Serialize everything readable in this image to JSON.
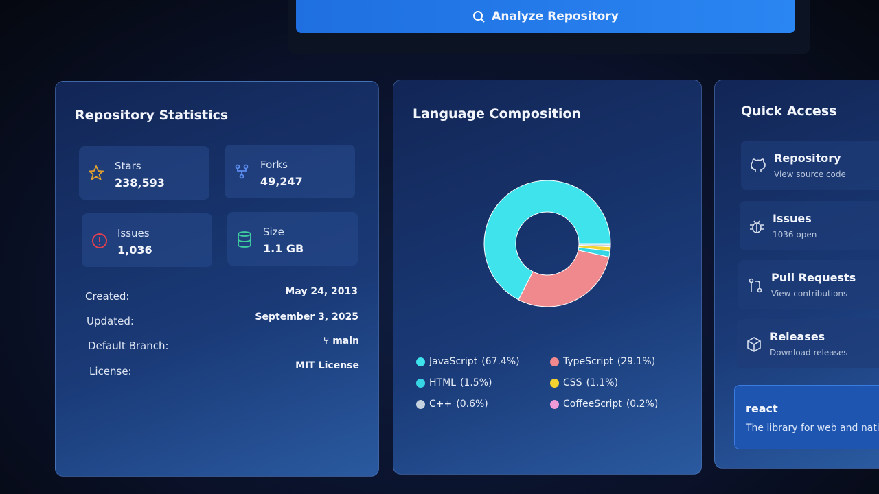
{
  "header": {
    "button": "Analyze Repository"
  },
  "stats": {
    "title": "Repository Statistics",
    "cards": [
      {
        "label": "Stars",
        "value": "238,593"
      },
      {
        "label": "Forks",
        "value": "49,247"
      },
      {
        "label": "Issues",
        "value": "1,036"
      },
      {
        "label": "Size",
        "value": "1.1 GB"
      }
    ],
    "details": [
      {
        "label": "Created:",
        "value": "May 24, 2013"
      },
      {
        "label": "Updated:",
        "value": "September 3, 2025"
      },
      {
        "label": "Default Branch:",
        "value": "main"
      },
      {
        "label": "License:",
        "value": "MIT License"
      }
    ]
  },
  "chart_data": {
    "type": "pie",
    "title": "Language Composition",
    "categories": [
      "JavaScript",
      "TypeScript",
      "HTML",
      "CSS",
      "C++",
      "CoffeeScript"
    ],
    "values": [
      67.4,
      29.1,
      1.5,
      1.1,
      0.6,
      0.2
    ],
    "value_labels": [
      "(67.4%)",
      "(29.1%)",
      "(1.5%)",
      "(1.1%)",
      "(0.6%)",
      "(0.2%)"
    ],
    "colors": [
      "#3ee3ec",
      "#f0898e",
      "#37d6e4",
      "#f2d230",
      "#c6d2df",
      "#f09ad8"
    ],
    "donut": true
  },
  "quick_access": {
    "title": "Quick Access",
    "items": [
      {
        "title": "Repository",
        "subtitle": "View source code"
      },
      {
        "title": "Issues",
        "subtitle": "1036 open"
      },
      {
        "title": "Pull Requests",
        "subtitle": "View contributions"
      },
      {
        "title": "Releases",
        "subtitle": "Download releases"
      }
    ],
    "repo": {
      "name": "react",
      "description": "The library for web and native"
    }
  }
}
